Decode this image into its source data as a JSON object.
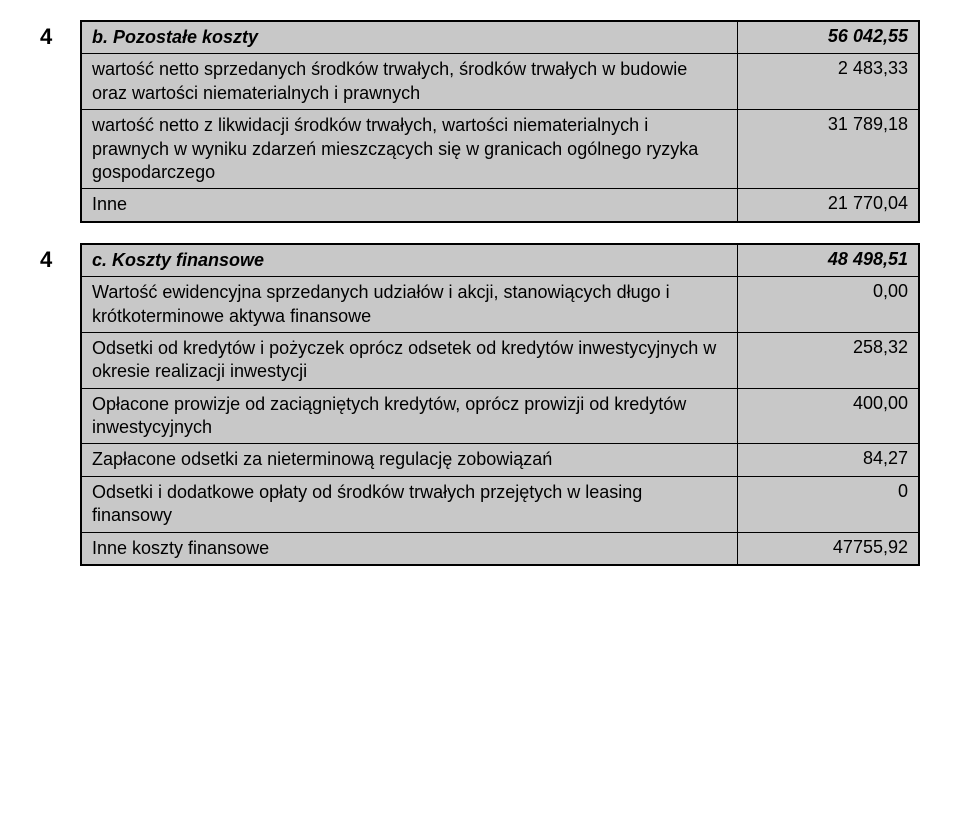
{
  "section1": {
    "num": "4",
    "header_label": "b. Pozostałe koszty",
    "header_value": "56 042,55",
    "rows": [
      {
        "label": "wartość netto sprzedanych środków trwałych, środków trwałych w budowie oraz wartości niematerialnych i prawnych",
        "value": "2 483,33"
      },
      {
        "label": "wartość netto z likwidacji środków trwałych, wartości niematerialnych i prawnych w wyniku zdarzeń mieszczących się w granicach ogólnego ryzyka gospodarczego",
        "value": "31 789,18"
      },
      {
        "label": "Inne",
        "value": "21 770,04"
      }
    ]
  },
  "section2": {
    "num": "4",
    "header_label": "c. Koszty finansowe",
    "header_value": "48 498,51",
    "rows": [
      {
        "label": "Wartość ewidencyjna sprzedanych udziałów i akcji, stanowiących długo i krótkoterminowe aktywa finansowe",
        "value": "0,00"
      },
      {
        "label": "Odsetki od kredytów i pożyczek oprócz odsetek od kredytów inwestycyjnych w okresie realizacji inwestycji",
        "value": "258,32"
      },
      {
        "label": "Opłacone prowizje od zaciągniętych kredytów, oprócz prowizji od kredytów inwestycyjnych",
        "value": "400,00"
      },
      {
        "label": "Zapłacone odsetki za nieterminową regulację zobowiązań",
        "value": "84,27"
      },
      {
        "label": "Odsetki i dodatkowe opłaty od środków trwałych przejętych w leasing finansowy",
        "value": "0"
      },
      {
        "label": "Inne koszty finansowe",
        "value": "47755,92"
      }
    ]
  },
  "colors": {
    "background": "#c8c8c8",
    "border": "#000000",
    "text": "#000000"
  }
}
